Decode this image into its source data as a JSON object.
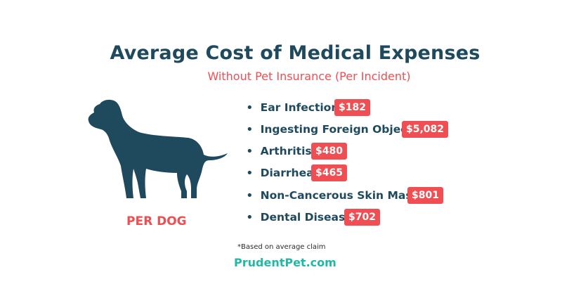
{
  "title": "Average Cost of Medical Expenses",
  "subtitle": "Without Pet Insurance (Per Incident)",
  "per_dog_label": "PER DOG",
  "dog_icon": "dog-silhouette-icon",
  "expenses": [
    {
      "label": "Ear Infection",
      "cost": "$182"
    },
    {
      "label": "Ingesting Foreign Object",
      "cost": "$5,082"
    },
    {
      "label": "Arthritis",
      "cost": "$480"
    },
    {
      "label": "Diarrhea",
      "cost": "$465"
    },
    {
      "label": "Non-Cancerous Skin Mass",
      "cost": "$801"
    },
    {
      "label": "Dental Disease",
      "cost": "$702"
    }
  ],
  "footnote": "*Based on average claim",
  "brand": "PrudentPet.com",
  "colors": {
    "title": "#1f4a5e",
    "accent": "#ef4e52",
    "dog": "#1f4a5e",
    "brand": "#22b8a6"
  }
}
